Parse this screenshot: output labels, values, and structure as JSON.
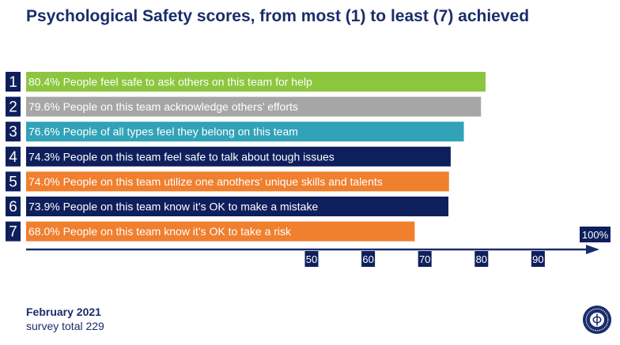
{
  "title": "Psychological Safety scores, from most (1) to least (7) achieved",
  "footer": {
    "date": "February 2021",
    "survey_total": "survey total 229"
  },
  "colors": {
    "title": "#1a2d6b",
    "navy": "#0f1f5c",
    "green": "#8cc63f",
    "gray": "#a6a6a6",
    "teal": "#31a2b8",
    "orange": "#f07f2e"
  },
  "logo": {
    "name": "circular-seal-logo"
  },
  "chart_data": {
    "type": "bar",
    "orientation": "horizontal",
    "ranks": [
      "1",
      "2",
      "3",
      "4",
      "5",
      "6",
      "7"
    ],
    "labels": [
      "80.4% People feel safe to ask others on this team for help",
      "79.6% People on this team acknowledge others’ efforts",
      "76.6% People of all types feel they belong on this team",
      "74.3% People on this team feel safe to talk about tough issues",
      "74.0% People on this team utilize one anothers’ unique skills and talents",
      "73.9% People on this team know it’s OK to make a mistake",
      "68.0% People on this team know it’s OK to take a risk"
    ],
    "values": [
      80.4,
      79.6,
      76.6,
      74.3,
      74.0,
      73.9,
      68.0
    ],
    "bar_colors": [
      "#8cc63f",
      "#a6a6a6",
      "#31a2b8",
      "#0f1f5c",
      "#f07f2e",
      "#0f1f5c",
      "#f07f2e"
    ],
    "label_colors": [
      "#ffffff",
      "#ffffff",
      "#ffffff",
      "#ffffff",
      "#ffffff",
      "#ffffff",
      "#ffffff"
    ],
    "x_ticks": [
      50,
      60,
      70,
      80,
      90
    ],
    "x_end_label": "100%",
    "title": "Psychological Safety scores, from most (1) to least (7) achieved"
  }
}
